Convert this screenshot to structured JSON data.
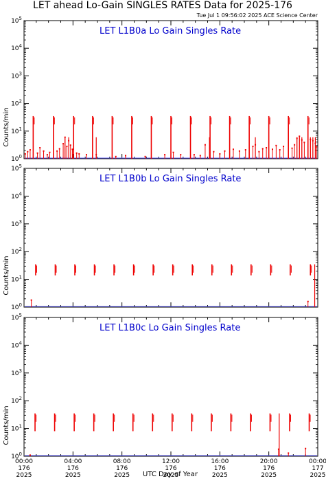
{
  "header": {
    "title": "LET ahead Lo-Gain SINGLES RATES Data for 2025-176",
    "timestamp": "Tue Jul  1 09:56:02 2025 ACE Science Center"
  },
  "chart_data": {
    "type": "scatter",
    "xlabel": "UTC Day of Year",
    "ylabel": "Counts/min",
    "yscale": "log",
    "ylim": [
      1,
      100000
    ],
    "ytick_labels": [
      {
        "base": "10",
        "exp": "0"
      },
      {
        "base": "10",
        "exp": "1"
      },
      {
        "base": "10",
        "exp": "2"
      },
      {
        "base": "10",
        "exp": "3"
      },
      {
        "base": "10",
        "exp": "4"
      },
      {
        "base": "10",
        "exp": "5"
      }
    ],
    "xlim_hours": [
      0,
      24
    ],
    "xtick_labels": [
      [
        "00:00",
        "176",
        "2025"
      ],
      [
        "04:00",
        "176",
        "2025"
      ],
      [
        "08:00",
        "176",
        "2025"
      ],
      [
        "12:00",
        "176",
        "2025"
      ],
      [
        "16:00",
        "176",
        "2025"
      ],
      [
        "20:00",
        "176",
        "2025"
      ],
      [
        "00:00",
        "177",
        "2025"
      ]
    ],
    "series_color": "#ee0000",
    "panels": [
      {
        "title": "LET L1B0a Lo Gain Singles Rate",
        "spike_hours": [
          0.75,
          2.4,
          4.05,
          5.6,
          7.2,
          8.8,
          10.4,
          12.0,
          13.6,
          15.2,
          16.8,
          18.4,
          20.0,
          21.6,
          23.2
        ],
        "spike_peak": 35,
        "spike_base": 1,
        "noise_points": [
          [
            0.1,
            1.5
          ],
          [
            0.3,
            1.8
          ],
          [
            0.5,
            2.1
          ],
          [
            1.1,
            1.6
          ],
          [
            1.3,
            2.5
          ],
          [
            1.6,
            1.9
          ],
          [
            1.9,
            1.4
          ],
          [
            2.1,
            1.7
          ],
          [
            2.7,
            1.9
          ],
          [
            2.9,
            2.3
          ],
          [
            3.2,
            3.5
          ],
          [
            3.35,
            6
          ],
          [
            3.5,
            2.8
          ],
          [
            3.65,
            4.5
          ],
          [
            3.8,
            3.1
          ],
          [
            3.95,
            2.2
          ],
          [
            4.3,
            1.6
          ],
          [
            4.5,
            1.5
          ],
          [
            5.1,
            1.4
          ],
          [
            5.9,
            1.4
          ],
          [
            7.5,
            1.2
          ],
          [
            8.3,
            1.3
          ],
          [
            9.9,
            1.2
          ],
          [
            11.5,
            1.4
          ],
          [
            12.2,
            1.7
          ],
          [
            12.8,
            1.4
          ],
          [
            13.9,
            1.4
          ],
          [
            14.4,
            1.3
          ],
          [
            14.8,
            3.2
          ],
          [
            15.5,
            1.8
          ],
          [
            16.0,
            1.5
          ],
          [
            16.4,
            1.9
          ],
          [
            17.1,
            2.2
          ],
          [
            17.6,
            1.9
          ],
          [
            18.1,
            2.1
          ],
          [
            18.7,
            2.8
          ],
          [
            18.9,
            3.2
          ],
          [
            19.2,
            1.8
          ],
          [
            19.5,
            2.3
          ],
          [
            19.8,
            2.5
          ],
          [
            20.3,
            2.2
          ],
          [
            20.6,
            3.0
          ],
          [
            20.9,
            2.1
          ],
          [
            21.2,
            2.8
          ],
          [
            21.9,
            2.4
          ],
          [
            22.1,
            3.2
          ],
          [
            22.3,
            5.5
          ],
          [
            22.5,
            6.5
          ],
          [
            22.7,
            4.8
          ],
          [
            22.9,
            3.9
          ],
          [
            23.4,
            5.0
          ],
          [
            23.6,
            4.5
          ],
          [
            23.8,
            3.6
          ],
          [
            23.9,
            2.7
          ]
        ],
        "noise_spike_hours": [
          3.35,
          3.65,
          5.9,
          15.15,
          18.9,
          22.3,
          22.5,
          22.7,
          23.4,
          23.6,
          23.8
        ]
      },
      {
        "title": "LET L1B0b Lo Gain Singles Rate",
        "spike_hours": [
          0.95,
          2.55,
          4.15,
          5.75,
          7.35,
          8.95,
          10.55,
          12.15,
          13.75,
          15.35,
          16.95,
          18.55,
          20.15,
          21.75,
          23.4
        ],
        "spike_peak": 35,
        "spike_base": 14,
        "noise_points": [
          [
            0.6,
            1.8
          ],
          [
            23.2,
            1.6
          ]
        ],
        "noise_spike_hours": [
          23.75
        ]
      },
      {
        "title": "LET L1B0c Lo Gain Singles Rate",
        "spike_hours": [
          0.9,
          2.5,
          4.1,
          5.7,
          7.3,
          8.9,
          10.5,
          12.1,
          13.7,
          15.3,
          16.9,
          18.5,
          20.1,
          21.7,
          23.3
        ],
        "spike_peak": 35,
        "spike_base": 8,
        "noise_points": [
          [
            0.5,
            1.1
          ],
          [
            20.8,
            1.8
          ],
          [
            21.6,
            1.3
          ],
          [
            23.0,
            1.9
          ]
        ],
        "noise_spike_hours": [
          20.85
        ]
      }
    ]
  }
}
